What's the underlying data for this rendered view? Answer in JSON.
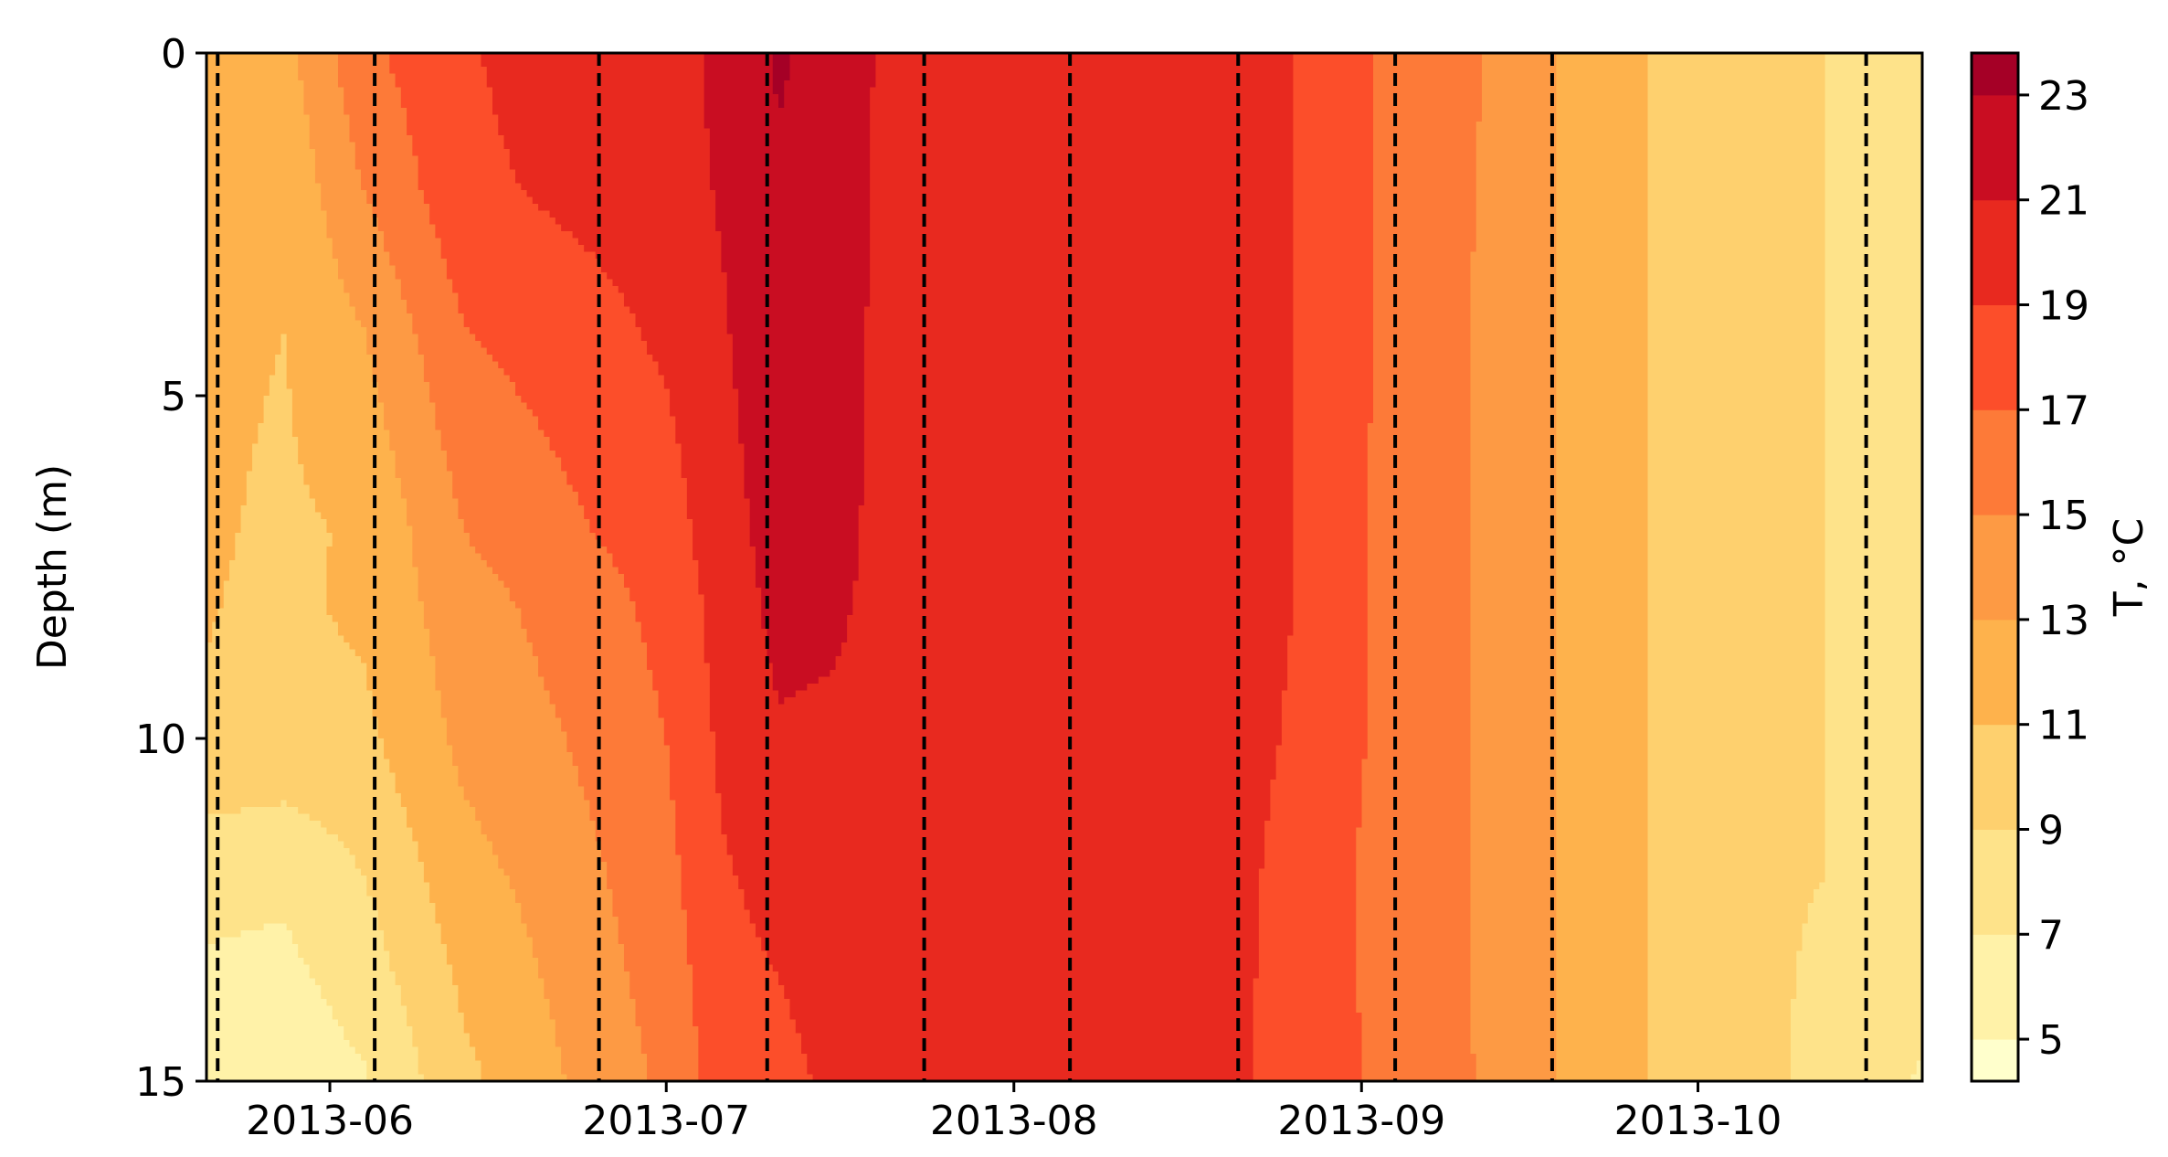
{
  "chart_data": {
    "type": "heatmap",
    "subtype": "filled-contour",
    "title": "",
    "xlabel": "",
    "ylabel": "Depth (m)",
    "x_type": "date",
    "xlim": [
      "2013-05-21",
      "2013-10-21"
    ],
    "ylim": [
      15,
      0
    ],
    "x_ticks": [
      "2013-06",
      "2013-07",
      "2013-08",
      "2013-09",
      "2013-10"
    ],
    "y_ticks": [
      0,
      5,
      10,
      15
    ],
    "colorbar": {
      "label": "T, °C",
      "levels": [
        4.2,
        5,
        7,
        9,
        11,
        13,
        15,
        17,
        19,
        21,
        23,
        23.8
      ],
      "tick_labels": [
        5,
        7,
        9,
        11,
        13,
        15,
        17,
        19,
        21,
        23
      ],
      "colors": [
        "#ffffcc",
        "#fff2a8",
        "#fee38a",
        "#fed06e",
        "#feb24c",
        "#fd9a44",
        "#fd7a38",
        "#fc4e2a",
        "#e8291f",
        "#c90d22",
        "#a50026"
      ]
    },
    "depths": [
      0,
      2,
      4,
      7,
      8,
      10,
      12,
      15
    ],
    "profiles": [
      {
        "date": "2013-05-21",
        "temps": [
          12.8,
          11.6,
          11.4,
          11.2,
          11.1,
          10.8,
          7.6,
          5.8
        ]
      },
      {
        "date": "2013-05-28",
        "temps": [
          12.4,
          11.4,
          11.0,
          10.7,
          10.6,
          10.4,
          7.4,
          5.6
        ]
      },
      {
        "date": "2013-06-04",
        "temps": [
          16.5,
          15.0,
          13.0,
          11.2,
          11.4,
          10.5,
          9.0,
          6.8
        ]
      },
      {
        "date": "2013-06-13",
        "temps": [
          18.8,
          18.5,
          17.0,
          15.0,
          14.2,
          13.5,
          12.3,
          10.5
        ]
      },
      {
        "date": "2013-06-22",
        "temps": [
          20.0,
          19.4,
          18.0,
          16.6,
          15.8,
          15.0,
          14.0,
          13.0
        ]
      },
      {
        "date": "2013-07-01",
        "temps": [
          20.0,
          20.0,
          19.4,
          18.0,
          17.6,
          17.0,
          16.4,
          15.4
        ]
      },
      {
        "date": "2013-07-06",
        "temps": [
          21.6,
          21.2,
          20.8,
          20.2,
          19.8,
          19.4,
          18.8,
          18.0
        ]
      },
      {
        "date": "2013-07-11",
        "temps": [
          23.2,
          22.8,
          22.4,
          21.8,
          21.6,
          20.8,
          19.6,
          18.4
        ]
      },
      {
        "date": "2013-07-16",
        "temps": [
          22.4,
          22.0,
          21.8,
          21.6,
          21.4,
          20.6,
          20.2,
          19.4
        ]
      },
      {
        "date": "2013-07-21",
        "temps": [
          20.4,
          20.4,
          20.4,
          20.3,
          20.2,
          20.1,
          20.0,
          19.6
        ]
      },
      {
        "date": "2013-08-04",
        "temps": [
          20.6,
          20.6,
          20.5,
          20.4,
          20.4,
          20.3,
          20.2,
          20.1
        ]
      },
      {
        "date": "2013-08-17",
        "temps": [
          20.4,
          20.4,
          20.4,
          20.3,
          20.3,
          20.2,
          20.2,
          20.1
        ]
      },
      {
        "date": "2013-08-26",
        "temps": [
          19.0,
          19.0,
          19.0,
          19.0,
          19.0,
          18.8,
          18.4,
          18.2
        ]
      },
      {
        "date": "2013-09-05",
        "temps": [
          16.2,
          16.2,
          16.1,
          16.0,
          16.0,
          16.0,
          15.8,
          16.2
        ]
      },
      {
        "date": "2013-09-12",
        "temps": [
          15.0,
          14.8,
          14.8,
          14.8,
          14.8,
          14.8,
          14.8,
          14.8
        ]
      },
      {
        "date": "2013-09-19",
        "temps": [
          12.8,
          12.8,
          12.8,
          12.8,
          12.8,
          12.8,
          12.8,
          12.8
        ]
      },
      {
        "date": "2013-09-28",
        "temps": [
          10.6,
          10.6,
          10.6,
          10.6,
          10.6,
          10.6,
          10.6,
          10.6
        ]
      },
      {
        "date": "2013-10-08",
        "temps": [
          9.2,
          9.2,
          9.2,
          9.2,
          9.2,
          9.2,
          9.2,
          9.2
        ]
      },
      {
        "date": "2013-10-21",
        "temps": [
          8.6,
          8.6,
          8.6,
          8.6,
          8.6,
          8.6,
          8.6,
          6.8
        ]
      }
    ],
    "vertical_lines": [
      "2013-05-22",
      "2013-06-05",
      "2013-06-25",
      "2013-07-10",
      "2013-07-24",
      "2013-08-06",
      "2013-08-21",
      "2013-09-04",
      "2013-09-18",
      "2013-10-16"
    ]
  }
}
